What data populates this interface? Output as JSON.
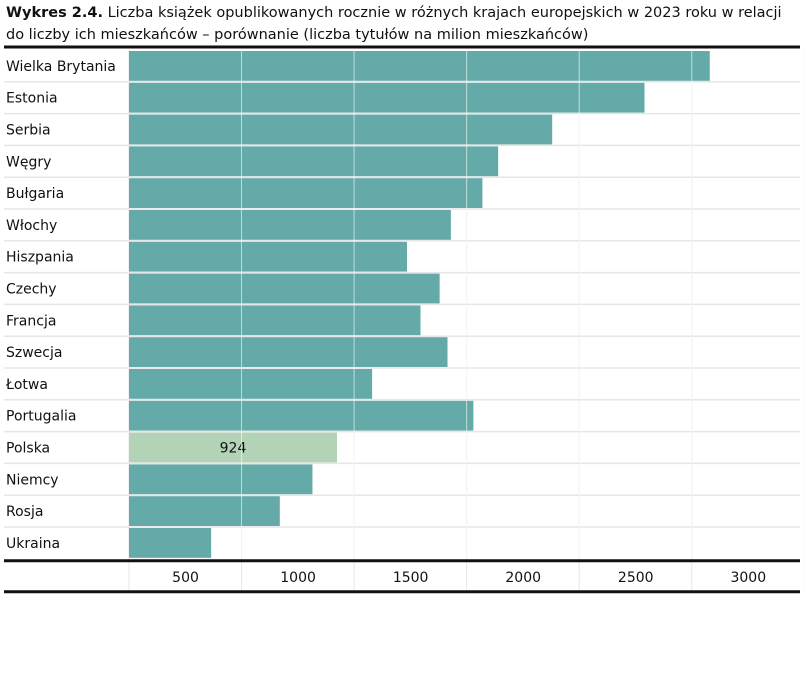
{
  "chart_data": {
    "type": "bar",
    "orientation": "horizontal",
    "title_prefix": "Wykres 2.4.",
    "title": "Liczba książek opublikowanych rocznie w różnych krajach europejskich w 2023 roku w relacji do liczby ich mieszkańców – porównanie (liczba tytułów na milion mieszkańców)",
    "categories": [
      "Wielka Brytania",
      "Estonia",
      "Serbia",
      "Węgry",
      "Bułgaria",
      "Włochy",
      "Hiszpania",
      "Czechy",
      "Francja",
      "Szwecja",
      "Łotwa",
      "Portugalia",
      "Polska",
      "Niemcy",
      "Rosja",
      "Ukraina"
    ],
    "values": [
      2580,
      2290,
      1880,
      1640,
      1570,
      1430,
      1235,
      1380,
      1295,
      1415,
      1080,
      1530,
      924,
      815,
      670,
      365
    ],
    "highlight": "Polska",
    "data_labels": {
      "Polska": "924"
    },
    "xticks": [
      "500",
      "1000",
      "1500",
      "2000",
      "2500",
      "3000"
    ],
    "xtick_values": [
      500,
      1000,
      1500,
      2000,
      2500,
      3000
    ],
    "xlim": [
      0,
      3000
    ],
    "grid": true,
    "colors": {
      "bar": "#64aaa8",
      "highlight": "#b3d3b6",
      "grid": "#e6e6e6"
    }
  }
}
